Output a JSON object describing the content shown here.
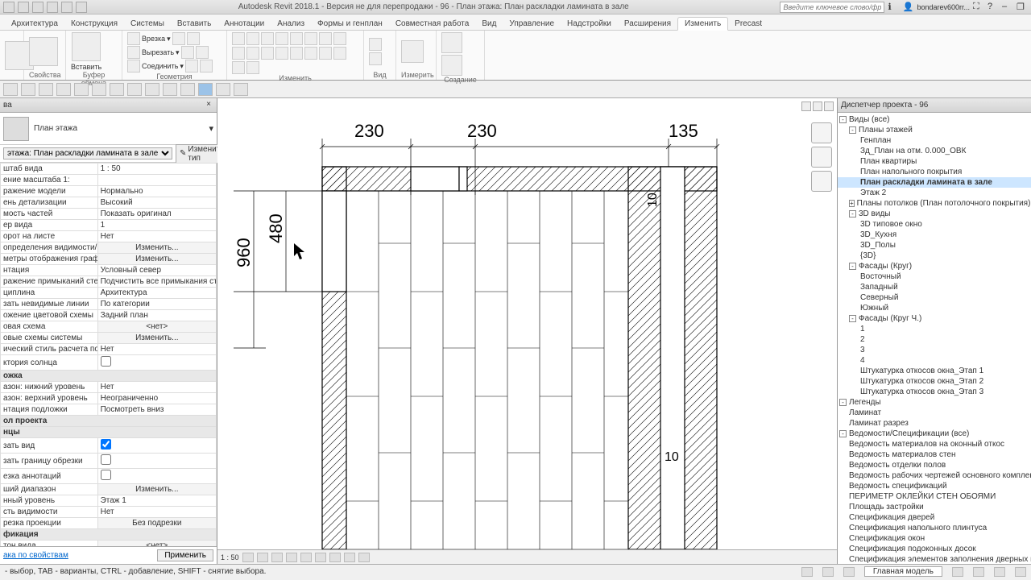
{
  "title": "Autodesk Revit 2018.1 - Версия не для перепродажи -   96 - План этажа: План раскладки ламината в зале",
  "search_placeholder": "Введите ключевое слово/фразу",
  "user": "bondarev600rr...",
  "ribbon_tabs": [
    "Архитектура",
    "Конструкция",
    "Системы",
    "Вставить",
    "Аннотации",
    "Анализ",
    "Формы и генплан",
    "Совместная работа",
    "Вид",
    "Управление",
    "Надстройки",
    "Расширения",
    "Изменить",
    "Precast"
  ],
  "active_tab": "Изменить",
  "ribbon_panels": {
    "p1": {
      "title": "",
      "btn": "Изменить"
    },
    "p2": {
      "title": "Свойства"
    },
    "p3": {
      "title": "Буфер обмена",
      "btn": "Вставить"
    },
    "p4": {
      "title": "Геометрия",
      "items": [
        "Врезка",
        "Вырезать",
        "Соединить"
      ]
    },
    "p5": {
      "title": "Изменить"
    },
    "p6": {
      "title": "Вид"
    },
    "p7": {
      "title": "Измерить"
    },
    "p8": {
      "title": "Создание"
    }
  },
  "props": {
    "header": "ва",
    "type_name": "План этажа",
    "instance_label": "этажа: План раскладки ламината в зале",
    "edit_type": "Изменить тип",
    "rows": [
      {
        "k": "штаб вида",
        "v": "1 : 50",
        "type": "text"
      },
      {
        "k": "ение масштаба   1:",
        "v": "",
        "type": "text"
      },
      {
        "k": "ражение модели",
        "v": "Нормально",
        "type": "text"
      },
      {
        "k": "ень детализации",
        "v": "Высокий",
        "type": "text"
      },
      {
        "k": "мость частей",
        "v": "Показать оригинал",
        "type": "text"
      },
      {
        "k": "ер вида",
        "v": "1",
        "type": "text"
      },
      {
        "k": "орот на листе",
        "v": "Нет",
        "type": "text"
      },
      {
        "k": "определения видимости/гр...",
        "v": "Изменить...",
        "type": "btn"
      },
      {
        "k": "метры отображения графи...",
        "v": "Изменить...",
        "type": "btn"
      },
      {
        "k": "нтация",
        "v": "Условный север",
        "type": "text"
      },
      {
        "k": "ражение примыканий стен",
        "v": "Подчистить все примыкания стен",
        "type": "text"
      },
      {
        "k": "циплина",
        "v": "Архитектура",
        "type": "text"
      },
      {
        "k": "зать невидимые линии",
        "v": "По категории",
        "type": "text"
      },
      {
        "k": "ожение цветовой схемы",
        "v": "Задний план",
        "type": "text"
      },
      {
        "k": "овая схема",
        "v": "<нет>",
        "type": "btn"
      },
      {
        "k": "овые схемы системы",
        "v": "Изменить...",
        "type": "btn"
      },
      {
        "k": "ический стиль расчета по у...",
        "v": "Нет",
        "type": "text"
      },
      {
        "k": "ктория солнца",
        "v": "",
        "type": "check",
        "checked": false
      },
      {
        "k": "ожка",
        "v": "",
        "type": "cat"
      },
      {
        "k": "азон: нижний уровень",
        "v": "Нет",
        "type": "text"
      },
      {
        "k": "азон: верхний уровень",
        "v": "Неограниченно",
        "type": "text"
      },
      {
        "k": "нтация подложки",
        "v": "Посмотреть вниз",
        "type": "text"
      },
      {
        "k": "ол проекта",
        "v": "",
        "type": "cat"
      },
      {
        "k": "нцы",
        "v": "",
        "type": "cat"
      },
      {
        "k": "зать вид",
        "v": "",
        "type": "check",
        "checked": true
      },
      {
        "k": "зать границу обрезки",
        "v": "",
        "type": "check",
        "checked": false
      },
      {
        "k": "езка аннотаций",
        "v": "",
        "type": "check",
        "checked": false
      },
      {
        "k": "ший диапазон",
        "v": "Изменить...",
        "type": "btn"
      },
      {
        "k": "нный уровень",
        "v": "Этаж 1",
        "type": "text"
      },
      {
        "k": "сть видимости",
        "v": "Нет",
        "type": "text"
      },
      {
        "k": "резка проекции",
        "v": "Без подрезки",
        "type": "btn"
      },
      {
        "k": "фикация",
        "v": "",
        "type": "cat"
      },
      {
        "k": "тон вида",
        "v": "<нет>",
        "type": "btn"
      },
      {
        "k": "вида",
        "v": "План раскладки ламината в зале",
        "type": "text"
      },
      {
        "k": "мость уровня",
        "v": "Независимый",
        "type": "text"
      }
    ],
    "footer_link": "ака по свойствам",
    "apply": "Применить"
  },
  "drawing": {
    "dims_top": [
      "230",
      "230",
      "135"
    ],
    "dim_left_outer": "960",
    "dim_left_inner": "480",
    "dim_right_top": "10",
    "dim_right_bottom": "10",
    "scale_label": "1 : 50",
    "hatch_color": "#000000",
    "line_color": "#000000",
    "bg": "#ffffff"
  },
  "browser": {
    "header": "Диспетчер проекта - 96",
    "tree": [
      {
        "l": 0,
        "t": "Виды (все)",
        "e": "-"
      },
      {
        "l": 1,
        "t": "Планы этажей",
        "e": "-"
      },
      {
        "l": 2,
        "t": "Генплан"
      },
      {
        "l": 2,
        "t": "Зд_План на отм. 0.000_ОВК"
      },
      {
        "l": 2,
        "t": "План квартиры"
      },
      {
        "l": 2,
        "t": "План напольного покрытия"
      },
      {
        "l": 2,
        "t": "План раскладки ламината в зале",
        "sel": true
      },
      {
        "l": 2,
        "t": "Этаж 2"
      },
      {
        "l": 1,
        "t": "Планы потолков (План потолочного покрытия)",
        "e": "+"
      },
      {
        "l": 1,
        "t": "3D виды",
        "e": "-"
      },
      {
        "l": 2,
        "t": "3D типовое окно"
      },
      {
        "l": 2,
        "t": "3D_Кухня"
      },
      {
        "l": 2,
        "t": "3D_Полы"
      },
      {
        "l": 2,
        "t": "{3D}"
      },
      {
        "l": 1,
        "t": "Фасады (Круг)",
        "e": "-"
      },
      {
        "l": 2,
        "t": "Восточный"
      },
      {
        "l": 2,
        "t": "Западный"
      },
      {
        "l": 2,
        "t": "Северный"
      },
      {
        "l": 2,
        "t": "Южный"
      },
      {
        "l": 1,
        "t": "Фасады (Круг Ч.)",
        "e": "-"
      },
      {
        "l": 2,
        "t": "1"
      },
      {
        "l": 2,
        "t": "2"
      },
      {
        "l": 2,
        "t": "3"
      },
      {
        "l": 2,
        "t": "4"
      },
      {
        "l": 2,
        "t": "Штукатурка откосов окна_Этап 1"
      },
      {
        "l": 2,
        "t": "Штукатурка откосов окна_Этап 2"
      },
      {
        "l": 2,
        "t": "Штукатурка откосов окна_Этап 3"
      },
      {
        "l": 0,
        "t": "Легенды",
        "e": "-"
      },
      {
        "l": 1,
        "t": "Ламинат"
      },
      {
        "l": 1,
        "t": "Ламинат разрез"
      },
      {
        "l": 0,
        "t": "Ведомости/Спецификации (все)",
        "e": "-"
      },
      {
        "l": 1,
        "t": "Ведомость материалов на оконный откос"
      },
      {
        "l": 1,
        "t": "Ведомость материалов стен"
      },
      {
        "l": 1,
        "t": "Ведомость отделки полов"
      },
      {
        "l": 1,
        "t": "Ведомость рабочих чертежей основного комплекта"
      },
      {
        "l": 1,
        "t": "Ведомость спецификаций"
      },
      {
        "l": 1,
        "t": "ПЕРИМЕТР ОКЛЕЙКИ СТЕН ОБОЯМИ"
      },
      {
        "l": 1,
        "t": "Площадь застройки"
      },
      {
        "l": 1,
        "t": "Спецификация дверей"
      },
      {
        "l": 1,
        "t": "Спецификация напольного плинтуса"
      },
      {
        "l": 1,
        "t": "Спецификация окон"
      },
      {
        "l": 1,
        "t": "Спецификация подоконных досок"
      },
      {
        "l": 1,
        "t": "Спецификация элементов заполнения дверных про..."
      }
    ]
  },
  "status": {
    "hint": "- выбор, TAB - варианты, CTRL - добавление, SHIFT - снятие выбора.",
    "model": "Главная модель"
  }
}
